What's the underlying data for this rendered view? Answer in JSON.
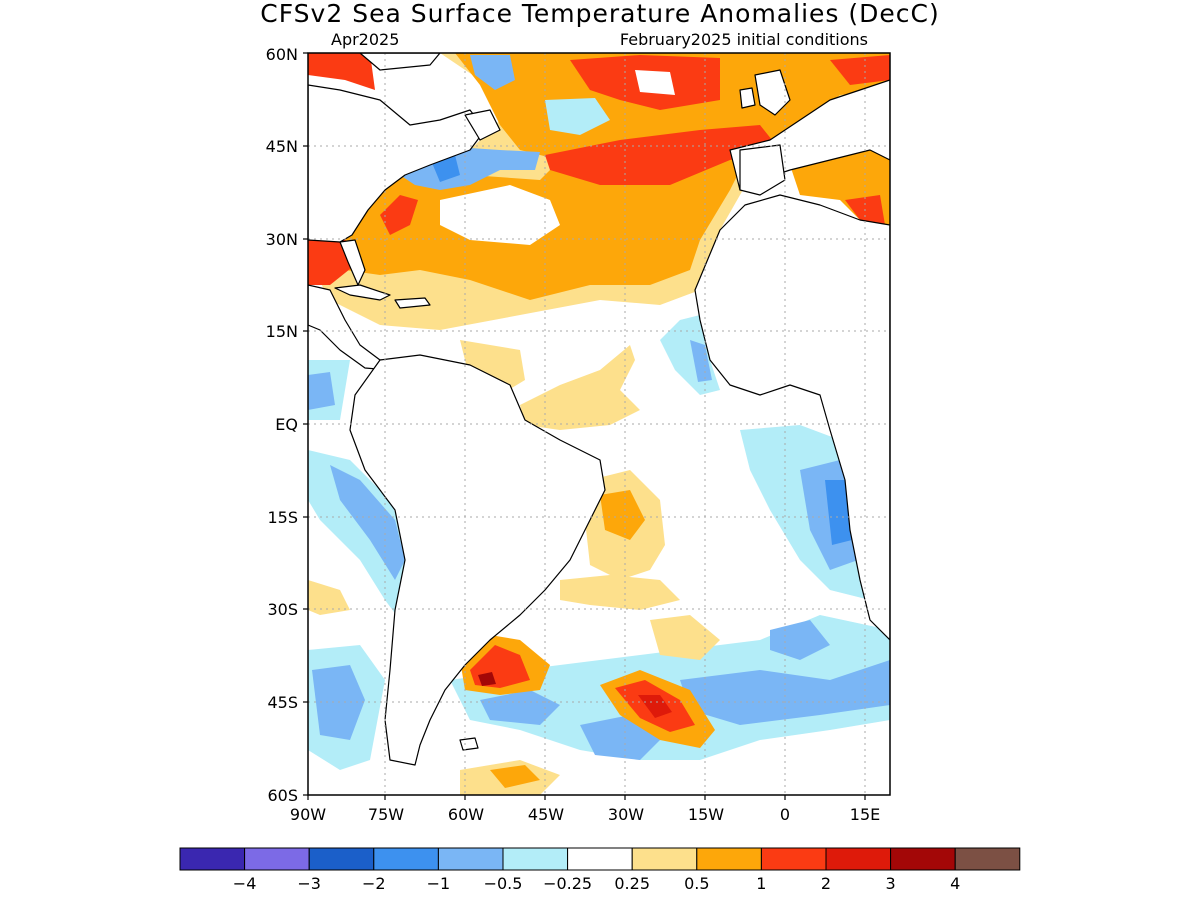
{
  "map": {
    "title": "CFSv2 Sea Surface Temperature Anomalies (DecC)",
    "valid_label": "Apr2025",
    "init_label": "February2025 initial conditions",
    "y_ticks": [
      "60N",
      "45N",
      "30N",
      "15N",
      "EQ",
      "15S",
      "30S",
      "45S",
      "60S"
    ],
    "x_ticks": [
      "90W",
      "75W",
      "60W",
      "45W",
      "30W",
      "15W",
      "0",
      "15E"
    ]
  },
  "colorbar": {
    "colors": [
      "#3a27b0",
      "#7c6ae6",
      "#1b5fc9",
      "#3d91ef",
      "#7ab6f5",
      "#b3edf8",
      "#ffffff",
      "#fde08c",
      "#fda70a",
      "#fb3b13",
      "#de1a0a",
      "#a30707",
      "#7c5044"
    ],
    "labels": [
      "−4",
      "−3",
      "−2",
      "−1",
      "−0.5",
      "−0.25",
      "0.25",
      "0.5",
      "1",
      "2",
      "3",
      "4"
    ]
  }
}
